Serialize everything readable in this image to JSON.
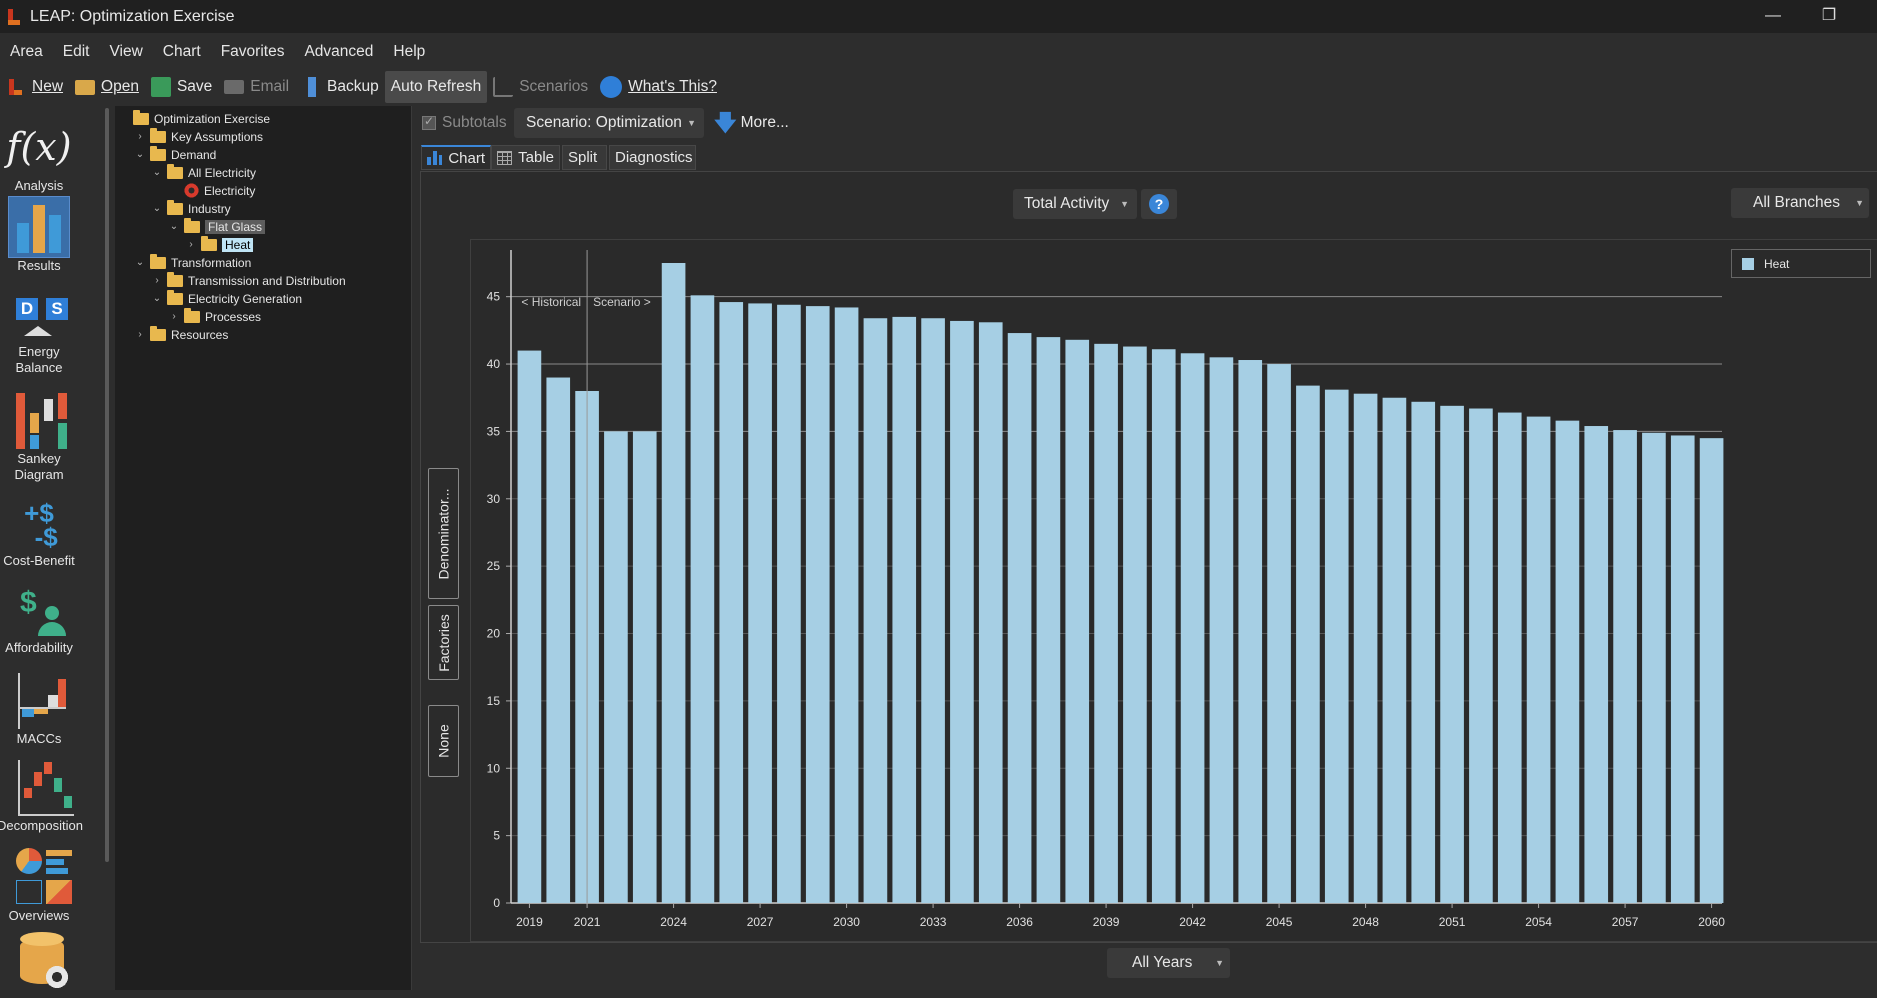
{
  "window": {
    "title": "LEAP: Optimization Exercise",
    "minimize": "—",
    "restore": "❐"
  },
  "menu": [
    "Area",
    "Edit",
    "View",
    "Chart",
    "Favorites",
    "Advanced",
    "Help"
  ],
  "toolbar": {
    "new": "New",
    "open": "Open",
    "save": "Save",
    "email": "Email",
    "backup": "Backup",
    "auto_refresh": "Auto Refresh",
    "scenarios": "Scenarios",
    "whats_this": "What's This?"
  },
  "views": [
    {
      "id": "analysis",
      "label": "Analysis"
    },
    {
      "id": "results",
      "label": "Results"
    },
    {
      "id": "energy-balance",
      "label": "Energy Balance"
    },
    {
      "id": "sankey",
      "label": "Sankey Diagram"
    },
    {
      "id": "cost-benefit",
      "label": "Cost-Benefit"
    },
    {
      "id": "affordability",
      "label": "Affordability"
    },
    {
      "id": "maccs",
      "label": "MACCs"
    },
    {
      "id": "decomposition",
      "label": "Decomposition"
    },
    {
      "id": "overviews",
      "label": "Overviews"
    }
  ],
  "tree": [
    {
      "label": "Optimization Exercise",
      "indent": 0,
      "chev": ""
    },
    {
      "label": "Key Assumptions",
      "indent": 1,
      "chev": "›"
    },
    {
      "label": "Demand",
      "indent": 1,
      "chev": "⌄"
    },
    {
      "label": "All Electricity",
      "indent": 2,
      "chev": "⌄"
    },
    {
      "label": "Electricity",
      "indent": 3,
      "chev": "",
      "icon": "gear"
    },
    {
      "label": "Industry",
      "indent": 2,
      "chev": "⌄"
    },
    {
      "label": "Flat Glass",
      "indent": 3,
      "chev": "⌄",
      "state": "sel"
    },
    {
      "label": "Heat",
      "indent": 4,
      "chev": "›",
      "state": "selhi"
    },
    {
      "label": "Transformation",
      "indent": 1,
      "chev": "⌄"
    },
    {
      "label": "Transmission and Distribution",
      "indent": 2,
      "chev": "›"
    },
    {
      "label": "Electricity Generation",
      "indent": 2,
      "chev": "⌄"
    },
    {
      "label": "Processes",
      "indent": 3,
      "chev": "›"
    },
    {
      "label": "Resources",
      "indent": 1,
      "chev": "›"
    }
  ],
  "results": {
    "subtotals": "Subtotals",
    "scenario": "Scenario: Optimization",
    "more": "More...",
    "tabs": [
      "Chart",
      "Table",
      "Split",
      "Diagnostics"
    ],
    "variable": "Total Activity",
    "help": "?",
    "branches": "All Branches",
    "years_selector": "All Years",
    "side_buttons": [
      "Denominator...",
      "Factories",
      "None"
    ],
    "historical_label": "< Historical",
    "scenario_label": "Scenario >"
  },
  "chart_data": {
    "type": "bar",
    "series": [
      {
        "name": "Heat",
        "values": [
          41.0,
          39.0,
          38.0,
          35.0,
          35.0,
          47.5,
          45.1,
          44.6,
          44.5,
          44.4,
          44.3,
          44.2,
          43.4,
          43.5,
          43.4,
          43.2,
          43.1,
          42.3,
          42.0,
          41.8,
          41.5,
          41.3,
          41.1,
          40.8,
          40.5,
          40.3,
          40.0,
          38.4,
          38.1,
          37.8,
          37.5,
          37.2,
          36.9,
          36.7,
          36.4,
          36.1,
          35.8,
          35.4,
          35.1,
          34.9,
          34.7,
          34.5
        ]
      }
    ],
    "categories": [
      2019,
      2020,
      2021,
      2022,
      2023,
      2024,
      2025,
      2026,
      2027,
      2028,
      2029,
      2030,
      2031,
      2032,
      2033,
      2034,
      2035,
      2036,
      2037,
      2038,
      2039,
      2040,
      2041,
      2042,
      2043,
      2044,
      2045,
      2046,
      2047,
      2048,
      2049,
      2050,
      2051,
      2052,
      2053,
      2054,
      2055,
      2056,
      2057,
      2058,
      2059,
      2060
    ],
    "x_tick_labels": [
      "2019",
      "2021",
      "2024",
      "2027",
      "2030",
      "2033",
      "2036",
      "2039",
      "2042",
      "2045",
      "2048",
      "2051",
      "2054",
      "2057",
      "2060"
    ],
    "y_tick_labels": [
      "0",
      "5",
      "10",
      "15",
      "20",
      "25",
      "30",
      "35",
      "40",
      "45"
    ],
    "ylim": [
      0,
      47.5
    ],
    "yticks": [
      0,
      5,
      10,
      15,
      20,
      25,
      30,
      35,
      40,
      45
    ],
    "major_gridlines": [
      35,
      40,
      45
    ],
    "historical_split_year": 2021,
    "legend": "top-right",
    "bar_color": "#a6cfe4"
  }
}
